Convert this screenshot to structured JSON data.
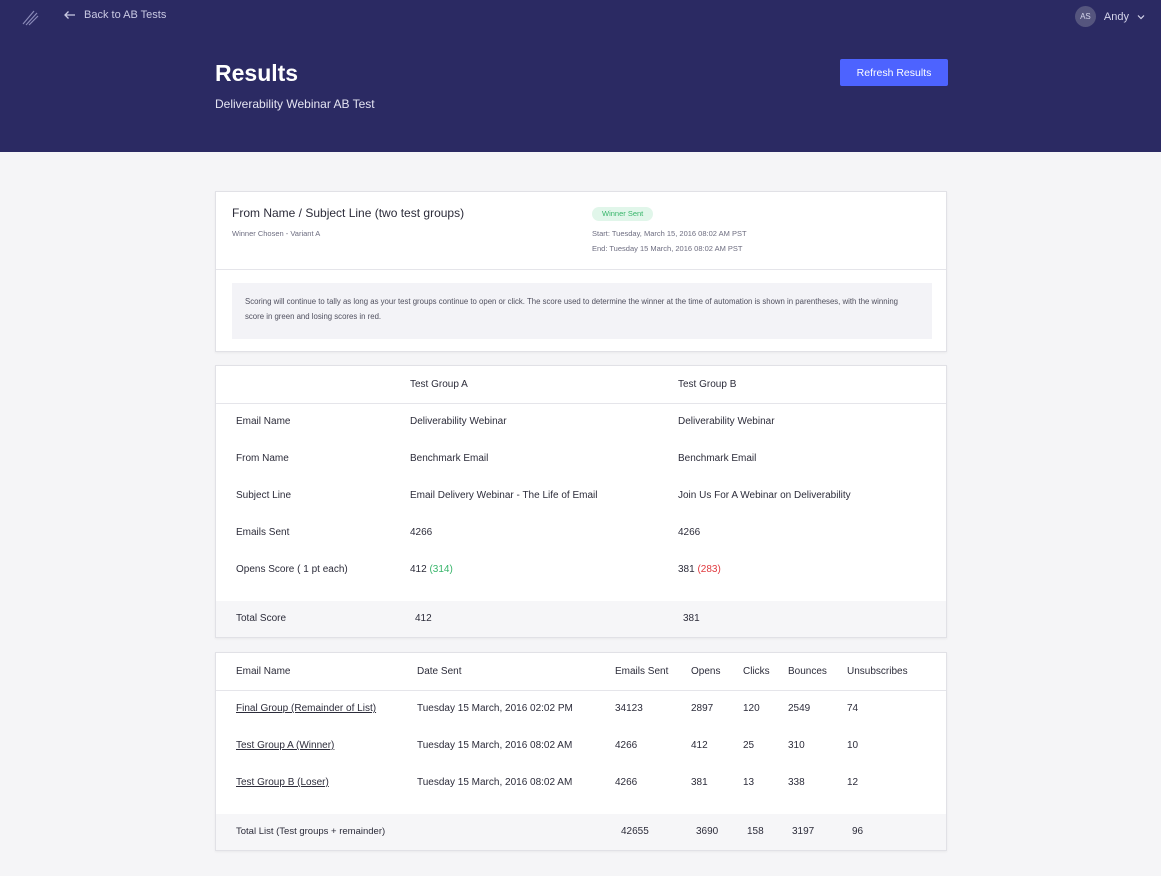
{
  "header": {
    "back_label": "Back to AB Tests",
    "user_initials": "AS",
    "user_name": "Andy",
    "title": "Results",
    "subtitle": "Deliverability Webinar AB Test",
    "refresh_label": "Refresh Results"
  },
  "summary": {
    "test_title": "From Name / Subject Line (two test groups)",
    "winner_chosen": "Winner Chosen - Variant A",
    "status_badge": "Winner Sent",
    "start": "Start: Tuesday, March 15, 2016 08:02 AM PST",
    "end": "End: Tuesday 15 March, 2016 08:02 AM PST",
    "notice": "Scoring will continue to tally as long as your test groups continue to open or click. The score used to determine the winner at the time of automation is shown in parentheses, with the winning score in green and losing scores in red."
  },
  "comparison": {
    "columns": [
      "Test Group A",
      "Test Group B"
    ],
    "rows": [
      {
        "label": "Email Name",
        "a": "Deliverability Webinar",
        "b": "Deliverability Webinar"
      },
      {
        "label": "From Name",
        "a": "Benchmark Email",
        "b": "Benchmark Email"
      },
      {
        "label": "Subject Line",
        "a": "Email Delivery Webinar - The Life of Email",
        "b": "Join Us For A Webinar on Deliverability"
      },
      {
        "label": "Emails Sent",
        "a": "4266",
        "b": "4266"
      }
    ],
    "opens_score": {
      "label": "Opens Score ( 1 pt each)",
      "a": "412",
      "a_score": "(314)",
      "b": "381",
      "b_score": "(283)"
    },
    "total": {
      "label": "Total Score",
      "a": "412",
      "b": "381"
    }
  },
  "results_table": {
    "headers": [
      "Email Name",
      "Date Sent",
      "Emails Sent",
      "Opens",
      "Clicks",
      "Bounces",
      "Unsubscribes"
    ],
    "rows": [
      [
        "Final Group (Remainder of List)",
        "Tuesday 15 March, 2016 02:02 PM",
        "34123",
        "2897",
        "120",
        "2549",
        "74"
      ],
      [
        "Test Group A (Winner)",
        "Tuesday 15 March, 2016 08:02 AM",
        "4266",
        "412",
        "25",
        "310",
        "10"
      ],
      [
        "Test Group B (Loser)",
        "Tuesday 15 March, 2016 08:02 AM",
        "4266",
        "381",
        "13",
        "338",
        "12"
      ]
    ],
    "total": [
      "Total List (Test groups + remainder)",
      "42655",
      "3690",
      "158",
      "3197",
      "96"
    ]
  },
  "colors": {
    "header_bg": "#2b2a63",
    "accent": "#4d63ff",
    "winner_green": "#37b56a",
    "loser_red": "#e0393e"
  }
}
